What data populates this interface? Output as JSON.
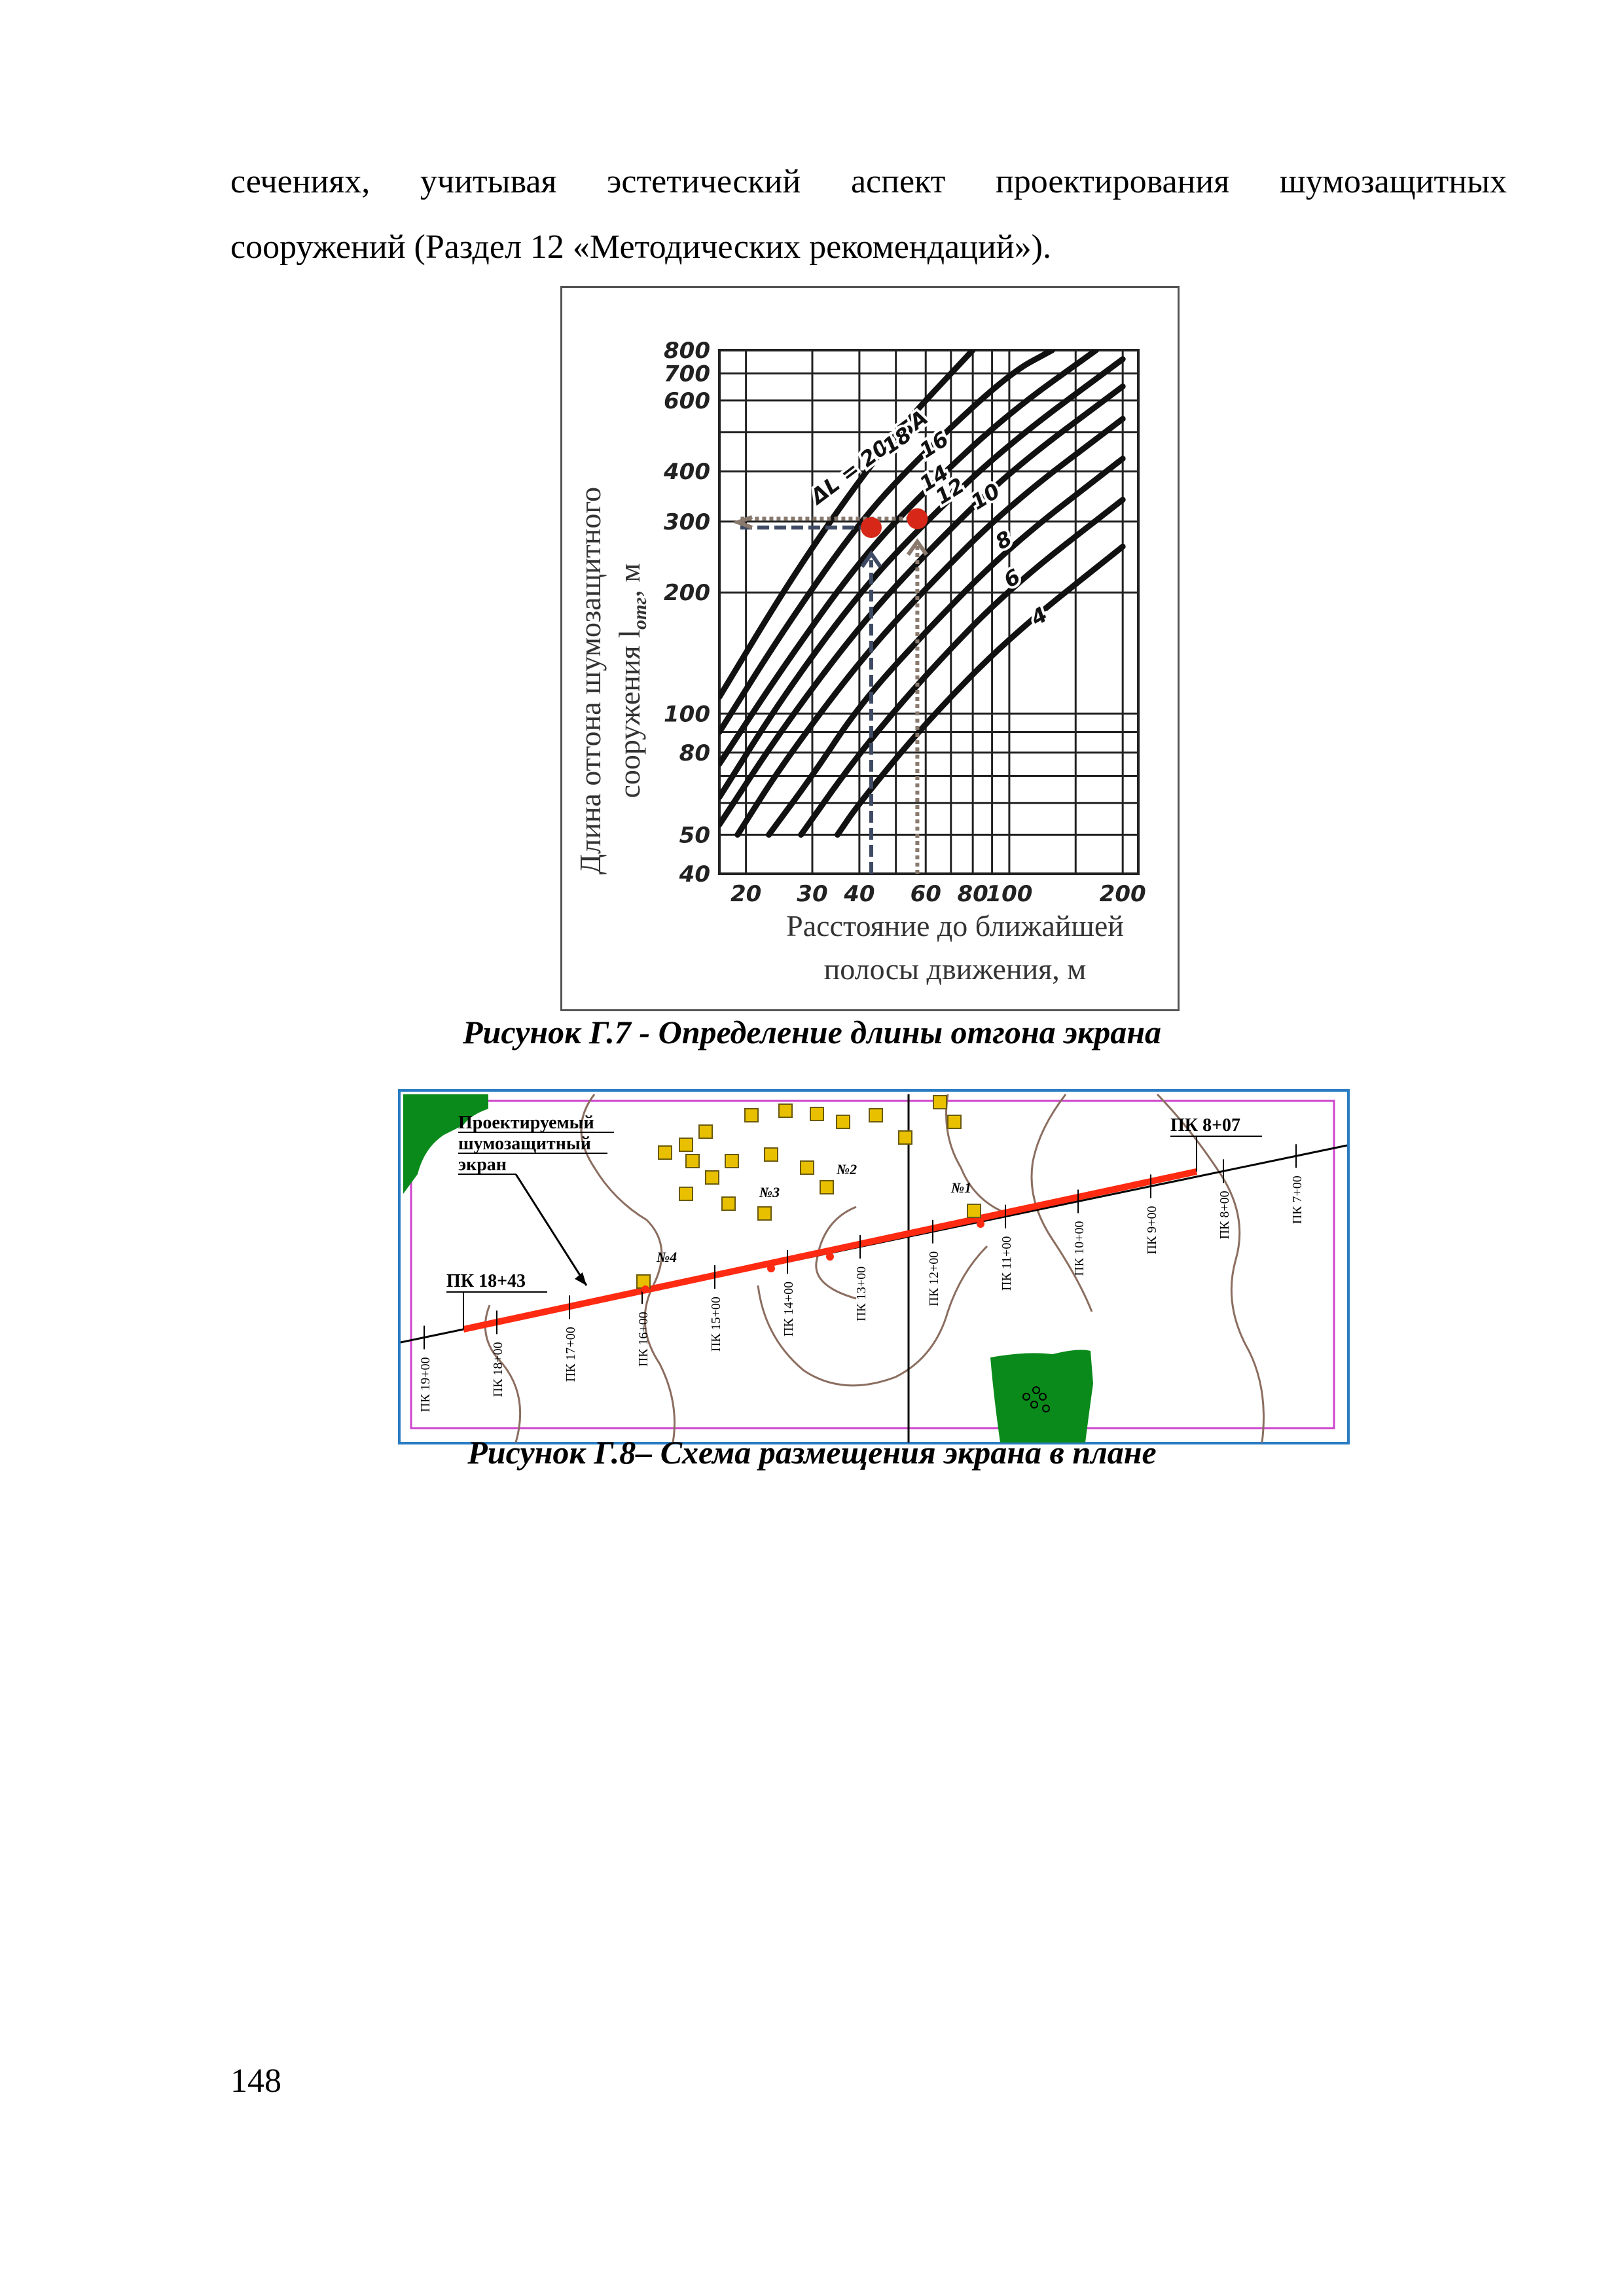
{
  "body_text": {
    "line1": "сечениях, учитывая эстетический аспект проектирования шумозащитных",
    "line2": "сооружений (Раздел 12 «Методических рекомендаций»)."
  },
  "figure_g7": {
    "caption": "Рисунок Г.7 - Определение длины отгона экрана",
    "y_axis_label_1": "Длина отгона шумозащитного",
    "y_axis_label_2": "сооружения l",
    "y_axis_label_sub": "отг",
    "y_axis_label_unit": ", м",
    "x_axis_label_1": "Расстояние до ближайшей",
    "x_axis_label_2": "полосы движения, м",
    "y_ticks": [
      "800",
      "700",
      "600",
      "400",
      "300",
      "200",
      "100",
      "80",
      "50",
      "40"
    ],
    "x_ticks": [
      "20",
      "30",
      "40",
      "60",
      "80",
      "100",
      "200"
    ],
    "curve_labels": [
      "ΔL = 20дБА",
      "18",
      "16",
      "14",
      "12",
      "10",
      "8",
      "6",
      "4"
    ],
    "colors": {
      "grid": "#222222",
      "point": "#d62718",
      "arrow_blue": "#3e4a63",
      "arrow_brown": "#8a7a6e"
    }
  },
  "chart_data": {
    "type": "line",
    "title": "",
    "xlabel": "Расстояние до ближайшей полосы движения, м",
    "ylabel": "Длина отгона шумозащитного сооружения l отг, м",
    "x_scale": "log",
    "y_scale": "log",
    "xlim": [
      17,
      220
    ],
    "ylim": [
      40,
      800
    ],
    "series": [
      {
        "name": "ΔL = 20дБА",
        "x": [
          17,
          25,
          35,
          50,
          80
        ],
        "y": [
          110,
          200,
          320,
          500,
          800
        ]
      },
      {
        "name": "18",
        "x": [
          17,
          25,
          40,
          60,
          100,
          130
        ],
        "y": [
          90,
          160,
          300,
          450,
          700,
          800
        ]
      },
      {
        "name": "16",
        "x": [
          17,
          25,
          40,
          60,
          100,
          170
        ],
        "y": [
          75,
          130,
          240,
          360,
          560,
          800
        ]
      },
      {
        "name": "14",
        "x": [
          17,
          25,
          40,
          60,
          100,
          200
        ],
        "y": [
          62,
          110,
          200,
          300,
          470,
          760
        ]
      },
      {
        "name": "12",
        "x": [
          17,
          25,
          40,
          60,
          100,
          200
        ],
        "y": [
          53,
          92,
          165,
          250,
          400,
          650
        ]
      },
      {
        "name": "10",
        "x": [
          19,
          25,
          40,
          60,
          100,
          200
        ],
        "y": [
          50,
          75,
          135,
          205,
          330,
          540
        ]
      },
      {
        "name": "8",
        "x": [
          23,
          30,
          40,
          60,
          100,
          200
        ],
        "y": [
          50,
          70,
          105,
          160,
          260,
          430
        ]
      },
      {
        "name": "6",
        "x": [
          28,
          40,
          60,
          100,
          200
        ],
        "y": [
          50,
          80,
          125,
          205,
          340
        ]
      },
      {
        "name": "4",
        "x": [
          35,
          40,
          60,
          100,
          200
        ],
        "y": [
          50,
          60,
          95,
          155,
          260
        ]
      }
    ],
    "points": [
      {
        "x": 43,
        "y": 290
      },
      {
        "x": 57,
        "y": 305
      }
    ],
    "grid": true
  },
  "figure_g8": {
    "caption": "Рисунок Г.8– Схема размещения экрана в плане",
    "legend_label_1": "Проектируемый",
    "legend_label_2": "шумозащитный",
    "legend_label_3": "экран",
    "start_label": "ПК 18+43",
    "end_label": "ПК 8+07",
    "receiver_labels": [
      "№1",
      "№2",
      "№3",
      "№4"
    ],
    "stations": [
      "ПК 19+00",
      "ПК 18+00",
      "ПК 17+00",
      "ПК 16+00",
      "ПК 15+00",
      "ПК 14+00",
      "ПК 13+00",
      "ПК 12+00",
      "ПК 11+00",
      "ПК 10+00",
      "ПК 9+00",
      "ПК 8+00",
      "ПК 7+00"
    ],
    "colors": {
      "screen": "#ff2a12",
      "building": "#e8c000",
      "forest": "#0a8a1a",
      "frame_outer": "#2a7cc2",
      "frame_inner": "#cc44cc",
      "contour": "#8b6e60"
    }
  },
  "page_number": "148"
}
